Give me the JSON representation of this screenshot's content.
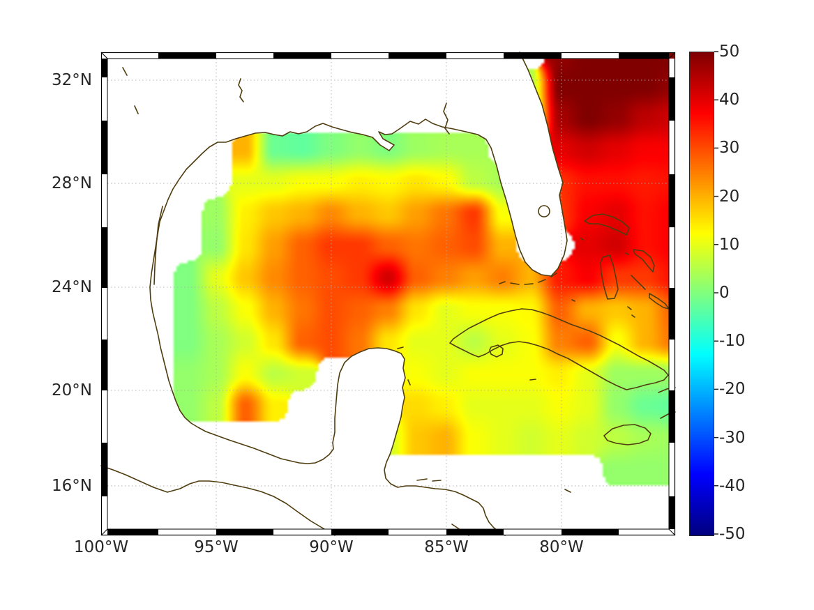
{
  "figure": {
    "xticks": [
      "100°W",
      "95°W",
      "90°W",
      "85°W",
      "80°W"
    ],
    "yticks": [
      "32°N",
      "28°N",
      "24°N",
      "20°N",
      "16°N"
    ],
    "colorbar_ticks": [
      "50",
      "40",
      "30",
      "20",
      "10",
      "0",
      "-10",
      "-20",
      "-30",
      "-40",
      "-50"
    ]
  },
  "chart_data": {
    "type": "heatmap",
    "title": "",
    "projection": "mercator",
    "lon_range_deg_west": [
      100,
      75.1
    ],
    "lat_range_deg_north": [
      13.9,
      33.05
    ],
    "x_tick_lon_deg_west": [
      100,
      95,
      90,
      85,
      80
    ],
    "y_tick_lat_deg_north": [
      32,
      28,
      24,
      20,
      16
    ],
    "grid_lines": "dotted",
    "colormap": "jet",
    "colorbar": {
      "min": -50,
      "max": 50,
      "tick_step": 10,
      "orientation": "vertical",
      "position": "right"
    },
    "no_data": "null entries = land / masked (rendered white)",
    "grid_shape": {
      "rows": 16,
      "cols": 21,
      "note": "rows top-to-bottom over plot area, cols left-to-right, uniform in projected pixels"
    },
    "values": [
      [
        null,
        null,
        null,
        null,
        null,
        null,
        null,
        null,
        null,
        null,
        null,
        null,
        null,
        null,
        null,
        null,
        48,
        50,
        50,
        50,
        50
      ],
      [
        null,
        null,
        null,
        null,
        null,
        null,
        null,
        null,
        null,
        null,
        null,
        null,
        null,
        null,
        null,
        5,
        50,
        50,
        50,
        50,
        48
      ],
      [
        null,
        null,
        null,
        null,
        null,
        null,
        null,
        null,
        null,
        null,
        null,
        null,
        null,
        null,
        null,
        3,
        46,
        50,
        48,
        44,
        42
      ],
      [
        null,
        null,
        null,
        null,
        null,
        20,
        -2,
        -3,
        0,
        2,
        0,
        3,
        4,
        4,
        null,
        null,
        40,
        42,
        40,
        38,
        38
      ],
      [
        null,
        null,
        null,
        null,
        null,
        10,
        10,
        12,
        12,
        14,
        13,
        15,
        13,
        6,
        4,
        null,
        33,
        36,
        36,
        35,
        36
      ],
      [
        null,
        null,
        null,
        null,
        3,
        14,
        18,
        20,
        24,
        20,
        18,
        22,
        26,
        32,
        12,
        null,
        32,
        38,
        40,
        36,
        38
      ],
      [
        null,
        null,
        null,
        null,
        2,
        15,
        22,
        28,
        32,
        32,
        28,
        26,
        28,
        30,
        20,
        null,
        null,
        40,
        42,
        36,
        38
      ],
      [
        null,
        null,
        null,
        0,
        10,
        18,
        24,
        28,
        30,
        32,
        42,
        28,
        25,
        22,
        25,
        20,
        35,
        38,
        32,
        32,
        36
      ],
      [
        null,
        null,
        null,
        0,
        6,
        12,
        20,
        26,
        30,
        28,
        25,
        15,
        10,
        12,
        12,
        13,
        28,
        20,
        18,
        20,
        28
      ],
      [
        null,
        null,
        null,
        0,
        4,
        8,
        15,
        28,
        30,
        26,
        15,
        10,
        10,
        6,
        10,
        12,
        25,
        28,
        12,
        20,
        26
      ],
      [
        null,
        null,
        null,
        2,
        4,
        12,
        6,
        8,
        null,
        null,
        null,
        12,
        10,
        12,
        12,
        12,
        14,
        10,
        3,
        3,
        3
      ],
      [
        null,
        null,
        null,
        2,
        6,
        28,
        14,
        null,
        null,
        null,
        null,
        16,
        14,
        10,
        10,
        10,
        12,
        10,
        2,
        -2,
        -3
      ],
      [
        null,
        null,
        null,
        null,
        null,
        null,
        null,
        null,
        null,
        null,
        8,
        18,
        20,
        12,
        10,
        8,
        10,
        8,
        6,
        4,
        3
      ],
      [
        null,
        null,
        null,
        null,
        null,
        null,
        null,
        null,
        null,
        null,
        null,
        null,
        null,
        null,
        null,
        null,
        null,
        null,
        2,
        2,
        2
      ],
      [
        null,
        null,
        null,
        null,
        null,
        null,
        null,
        null,
        null,
        null,
        null,
        null,
        null,
        null,
        null,
        null,
        null,
        null,
        null,
        null,
        null
      ],
      [
        null,
        null,
        null,
        null,
        null,
        null,
        null,
        null,
        null,
        null,
        null,
        null,
        null,
        null,
        null,
        null,
        null,
        null,
        null,
        null,
        null
      ]
    ],
    "colors": {
      "coastline": "#4f3d10",
      "grid_dots": "#ababab",
      "frame": "#000000",
      "labels": "#262626",
      "background": "#ffffff"
    }
  }
}
